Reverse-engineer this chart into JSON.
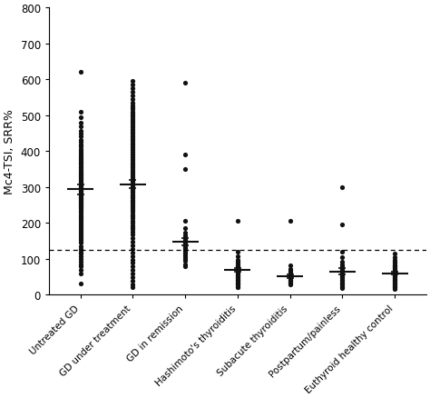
{
  "ylabel": "Mc4-TSI, SRR%",
  "ylim": [
    0,
    800
  ],
  "yticks": [
    0,
    100,
    200,
    300,
    400,
    500,
    600,
    700,
    800
  ],
  "dashed_line_y": 125,
  "categories": [
    "Untreated GD",
    "GD under treatment",
    "GD in remission",
    "Hashimoto's thyroiditis",
    "Subacute thyroiditis",
    "Postpartum/painless",
    "Euthyroid healthy control"
  ],
  "means": [
    293,
    308,
    148,
    68,
    52,
    65,
    60
  ],
  "sem_lo": [
    15,
    12,
    10,
    5,
    5,
    10,
    5
  ],
  "sem_hi": [
    15,
    12,
    10,
    5,
    5,
    10,
    5
  ],
  "dot_color": "#111111",
  "background_color": "#ffffff",
  "marker_size": 14,
  "groups": {
    "Untreated GD": {
      "points": [
        620,
        510,
        495,
        480,
        468,
        455,
        448,
        440,
        432,
        425,
        418,
        412,
        405,
        400,
        395,
        390,
        385,
        382,
        378,
        375,
        370,
        368,
        365,
        362,
        358,
        355,
        352,
        348,
        345,
        342,
        340,
        338,
        335,
        332,
        330,
        328,
        325,
        322,
        320,
        318,
        315,
        312,
        310,
        308,
        306,
        304,
        302,
        300,
        298,
        296,
        294,
        292,
        290,
        288,
        286,
        284,
        282,
        280,
        278,
        276,
        274,
        272,
        270,
        268,
        266,
        264,
        262,
        260,
        258,
        256,
        254,
        252,
        250,
        248,
        246,
        244,
        242,
        238,
        234,
        230,
        226,
        222,
        218,
        214,
        210,
        205,
        200,
        195,
        190,
        185,
        180,
        175,
        170,
        165,
        160,
        155,
        150,
        145,
        135,
        128,
        120,
        115,
        108,
        100,
        92,
        85,
        78,
        70,
        60,
        30
      ]
    },
    "GD under treatment": {
      "points": [
        595,
        585,
        575,
        565,
        555,
        545,
        535,
        528,
        522,
        516,
        510,
        506,
        502,
        498,
        494,
        490,
        486,
        482,
        478,
        474,
        470,
        466,
        462,
        458,
        454,
        450,
        446,
        442,
        438,
        434,
        430,
        426,
        422,
        418,
        414,
        410,
        406,
        402,
        398,
        394,
        390,
        386,
        382,
        378,
        374,
        370,
        366,
        362,
        358,
        354,
        350,
        346,
        342,
        338,
        334,
        330,
        326,
        322,
        318,
        314,
        310,
        307,
        304,
        301,
        298,
        295,
        292,
        289,
        286,
        283,
        280,
        277,
        274,
        271,
        268,
        265,
        262,
        259,
        256,
        252,
        248,
        244,
        240,
        235,
        230,
        224,
        218,
        212,
        206,
        200,
        194,
        188,
        182,
        176,
        168,
        158,
        148,
        138,
        128,
        118,
        108,
        98,
        88,
        78,
        68,
        58,
        48,
        38,
        28,
        20
      ]
    },
    "GD in remission": {
      "points": [
        590,
        390,
        350,
        205,
        185,
        172,
        165,
        160,
        155,
        152,
        150,
        148,
        146,
        144,
        142,
        140,
        138,
        136,
        134,
        132,
        130,
        128,
        125,
        122,
        118,
        114,
        110,
        105,
        100,
        95,
        85,
        78
      ]
    },
    "Hashimoto's thyroiditis": {
      "points": [
        205,
        120,
        108,
        98,
        92,
        88,
        85,
        82,
        80,
        78,
        76,
        74,
        72,
        70,
        68,
        66,
        64,
        62,
        60,
        58,
        56,
        54,
        52,
        50,
        48,
        46,
        44,
        42,
        40,
        38,
        36,
        34,
        32,
        30,
        28,
        25,
        22,
        20
      ]
    },
    "Subacute thyroiditis": {
      "points": [
        205,
        82,
        72,
        68,
        65,
        62,
        58,
        55,
        52,
        50,
        48,
        46,
        44,
        42,
        40,
        38,
        36,
        34,
        32,
        30,
        28
      ]
    },
    "Postpartum/painless": {
      "points": [
        300,
        195,
        120,
        105,
        92,
        85,
        80,
        76,
        72,
        68,
        65,
        62,
        60,
        58,
        55,
        52,
        50,
        48,
        45,
        42,
        40,
        38,
        35,
        32,
        30,
        28,
        25,
        22,
        20,
        18
      ]
    },
    "Euthyroid healthy control": {
      "points": [
        115,
        105,
        98,
        92,
        88,
        85,
        82,
        80,
        78,
        76,
        74,
        72,
        70,
        68,
        66,
        64,
        62,
        60,
        58,
        56,
        54,
        52,
        50,
        48,
        46,
        44,
        42,
        40,
        38,
        36,
        34,
        32,
        30,
        28,
        26,
        24,
        22,
        20,
        18,
        16
      ]
    }
  }
}
